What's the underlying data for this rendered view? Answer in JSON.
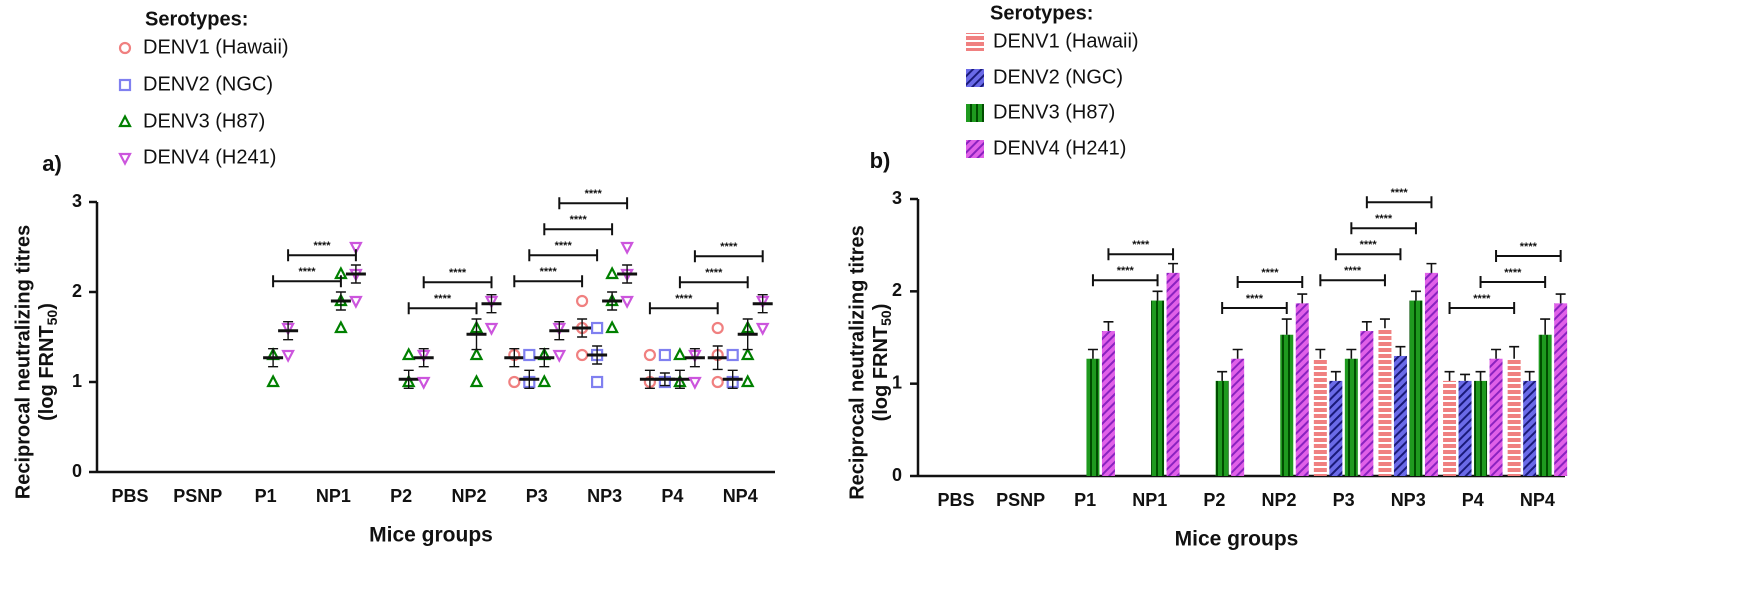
{
  "chart_data": [
    {
      "type": "strip",
      "panel": "a)",
      "legend_title": "Serotypes:",
      "x_label": "Mice groups",
      "y_label": [
        "Reciprocal neutralizing titres",
        "(log FRNT"
      ],
      "y_label_sub": "50",
      "y_label_close": ")",
      "categories": [
        "PBS",
        "PSNP",
        "P1",
        "NP1",
        "P2",
        "NP2",
        "P3",
        "NP3",
        "P4",
        "NP4"
      ],
      "ylim": [
        0,
        3
      ],
      "yticks": [
        0,
        1,
        2,
        3
      ],
      "series": [
        {
          "name": "DENV1 (Hawaii)",
          "color": "#f08080",
          "marker": "circle",
          "values": [
            null,
            null,
            null,
            null,
            null,
            null,
            1.27,
            1.6,
            1.03,
            1.27
          ],
          "errors": [
            null,
            null,
            null,
            null,
            null,
            null,
            0.1,
            0.1,
            0.1,
            0.13
          ],
          "points": [
            null,
            null,
            null,
            null,
            null,
            null,
            [
              1.3,
              1.0
            ],
            [
              1.9,
              1.6,
              1.3
            ],
            [
              1.3,
              1.0
            ],
            [
              1.6,
              1.3,
              1.0
            ]
          ]
        },
        {
          "name": "DENV2 (NGC)",
          "color": "#8080f0",
          "marker": "square",
          "values": [
            null,
            null,
            null,
            null,
            null,
            null,
            1.03,
            1.3,
            1.03,
            1.03
          ],
          "errors": [
            null,
            null,
            null,
            null,
            null,
            null,
            0.1,
            0.1,
            0.07,
            0.1
          ],
          "points": [
            null,
            null,
            null,
            null,
            null,
            null,
            [
              1.3,
              1.0
            ],
            [
              1.6,
              1.3,
              1.0
            ],
            [
              1.3,
              1.0
            ],
            [
              1.3,
              1.0
            ]
          ]
        },
        {
          "name": "DENV3 (H87)",
          "color": "#008000",
          "marker": "triangle-up",
          "values": [
            null,
            null,
            1.27,
            1.9,
            1.03,
            1.53,
            1.27,
            1.9,
            1.03,
            1.53
          ],
          "errors": [
            null,
            null,
            0.1,
            0.1,
            0.1,
            0.17,
            0.1,
            0.1,
            0.1,
            0.17
          ],
          "points": [
            null,
            null,
            [
              1.3,
              1.0
            ],
            [
              2.2,
              1.9,
              1.6
            ],
            [
              1.3,
              1.0
            ],
            [
              1.6,
              1.3,
              1.0
            ],
            [
              1.3,
              1.0
            ],
            [
              2.2,
              1.9,
              1.6
            ],
            [
              1.3,
              1.0
            ],
            [
              1.6,
              1.3,
              1.0
            ]
          ]
        },
        {
          "name": "DENV4 (H241)",
          "color": "#cc55dd",
          "marker": "triangle-down",
          "values": [
            null,
            null,
            1.57,
            2.2,
            1.27,
            1.87,
            1.57,
            2.2,
            1.27,
            1.87
          ],
          "errors": [
            null,
            null,
            0.1,
            0.1,
            0.1,
            0.1,
            0.1,
            0.1,
            0.1,
            0.1
          ],
          "points": [
            null,
            null,
            [
              1.6,
              1.3
            ],
            [
              2.5,
              2.2,
              1.9
            ],
            [
              1.3,
              1.0
            ],
            [
              1.9,
              1.6
            ],
            [
              1.6,
              1.3
            ],
            [
              2.5,
              2.2,
              1.9
            ],
            [
              1.3,
              1.0
            ],
            [
              1.9,
              1.6
            ]
          ]
        }
      ],
      "brackets": [
        {
          "from": 2,
          "to": 3,
          "series": 2,
          "label": "****"
        },
        {
          "from": 2,
          "to": 3,
          "series": 3,
          "label": "****"
        },
        {
          "from": 4,
          "to": 5,
          "series": 2,
          "label": "****"
        },
        {
          "from": 4,
          "to": 5,
          "series": 3,
          "label": "****"
        },
        {
          "from": 6,
          "to": 7,
          "series": 0,
          "label": "****"
        },
        {
          "from": 6,
          "to": 7,
          "series": 1,
          "label": "****"
        },
        {
          "from": 6,
          "to": 7,
          "series": 2,
          "label": "****"
        },
        {
          "from": 6,
          "to": 7,
          "series": 3,
          "label": "****"
        },
        {
          "from": 8,
          "to": 9,
          "series": 0,
          "label": "****"
        },
        {
          "from": 8,
          "to": 9,
          "series": 2,
          "label": "****"
        },
        {
          "from": 8,
          "to": 9,
          "series": 3,
          "label": "****"
        }
      ]
    },
    {
      "type": "bar",
      "panel": "b)",
      "legend_title": "Serotypes:",
      "x_label": "Mice groups",
      "y_label": [
        "Reciprocal neutralizing titres",
        "(log FRNT"
      ],
      "y_label_sub": "50",
      "y_label_close": ")",
      "categories": [
        "PBS",
        "PSNP",
        "P1",
        "NP1",
        "P2",
        "NP2",
        "P3",
        "NP3",
        "P4",
        "NP4"
      ],
      "ylim": [
        0,
        3
      ],
      "yticks": [
        0,
        1,
        2,
        3
      ],
      "series": [
        {
          "name": "DENV1 (Hawaii)",
          "color": "#f08080",
          "hatch_color": "#ffffff",
          "pattern": "horizontal",
          "values": [
            null,
            null,
            null,
            null,
            null,
            null,
            1.27,
            1.6,
            1.03,
            1.27
          ],
          "errors": [
            null,
            null,
            null,
            null,
            null,
            null,
            0.1,
            0.1,
            0.1,
            0.13
          ]
        },
        {
          "name": "DENV2 (NGC)",
          "color": "#6a6ae8",
          "hatch_color": "#1a1a7a",
          "pattern": "diagonal",
          "values": [
            null,
            null,
            null,
            null,
            null,
            null,
            1.03,
            1.3,
            1.03,
            1.03
          ],
          "errors": [
            null,
            null,
            null,
            null,
            null,
            null,
            0.1,
            0.1,
            0.07,
            0.1
          ]
        },
        {
          "name": "DENV3 (H87)",
          "color": "#1f9a1f",
          "hatch_color": "#004d00",
          "pattern": "vertical",
          "values": [
            null,
            null,
            1.27,
            1.9,
            1.03,
            1.53,
            1.27,
            1.9,
            1.03,
            1.53
          ],
          "errors": [
            null,
            null,
            0.1,
            0.1,
            0.1,
            0.17,
            0.1,
            0.1,
            0.1,
            0.17
          ]
        },
        {
          "name": "DENV4 (H241)",
          "color": "#e060e8",
          "hatch_color": "#8a22c0",
          "pattern": "diagonal",
          "values": [
            null,
            null,
            1.57,
            2.2,
            1.27,
            1.87,
            1.57,
            2.2,
            1.27,
            1.87
          ],
          "errors": [
            null,
            null,
            0.1,
            0.1,
            0.1,
            0.1,
            0.1,
            0.1,
            0.1,
            0.1
          ]
        }
      ],
      "brackets": [
        {
          "from": 2,
          "to": 3,
          "series": 2,
          "label": "****"
        },
        {
          "from": 2,
          "to": 3,
          "series": 3,
          "label": "****"
        },
        {
          "from": 4,
          "to": 5,
          "series": 2,
          "label": "****"
        },
        {
          "from": 4,
          "to": 5,
          "series": 3,
          "label": "****"
        },
        {
          "from": 6,
          "to": 7,
          "series": 0,
          "label": "****"
        },
        {
          "from": 6,
          "to": 7,
          "series": 1,
          "label": "****"
        },
        {
          "from": 6,
          "to": 7,
          "series": 2,
          "label": "****"
        },
        {
          "from": 6,
          "to": 7,
          "series": 3,
          "label": "****"
        },
        {
          "from": 8,
          "to": 9,
          "series": 0,
          "label": "****"
        },
        {
          "from": 8,
          "to": 9,
          "series": 2,
          "label": "****"
        },
        {
          "from": 8,
          "to": 9,
          "series": 3,
          "label": "****"
        }
      ]
    }
  ]
}
